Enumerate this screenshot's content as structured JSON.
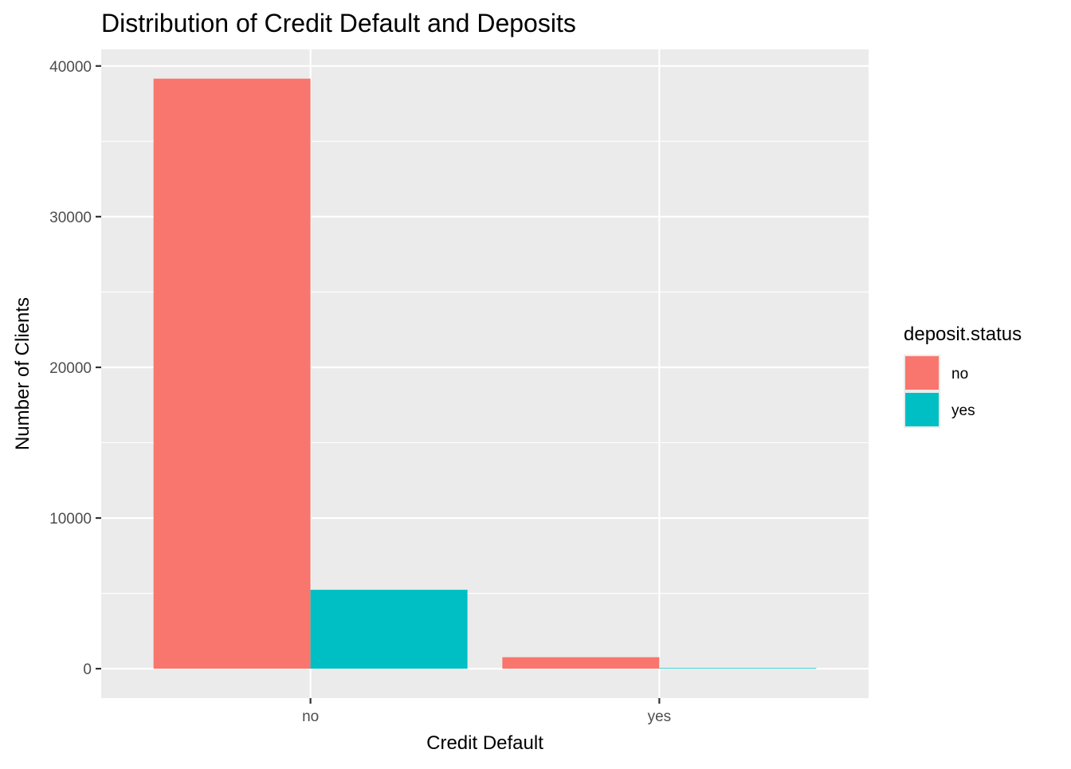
{
  "chart_data": {
    "type": "bar",
    "title": "Distribution of Credit Default and Deposits",
    "xlabel": "Credit Default",
    "ylabel": "Number of Clients",
    "categories": [
      "no",
      "yes"
    ],
    "series": [
      {
        "name": "no",
        "color": "#F8766D",
        "values": [
          39159,
          763
        ]
      },
      {
        "name": "yes",
        "color": "#00BFC4",
        "values": [
          5237,
          43
        ]
      }
    ],
    "ylim": [
      -1950,
      41100
    ],
    "y_ticks": [
      0,
      10000,
      20000,
      30000,
      40000
    ],
    "y_tick_labels": [
      "0",
      "10000",
      "20000",
      "30000",
      "40000"
    ],
    "grid": true,
    "panel_background": "#EBEBEB",
    "grid_color": "#FFFFFF",
    "legend": {
      "title": "deposit.status",
      "position": "right",
      "items": [
        {
          "label": "no",
          "color": "#F8766D"
        },
        {
          "label": "yes",
          "color": "#00BFC4"
        }
      ]
    }
  }
}
